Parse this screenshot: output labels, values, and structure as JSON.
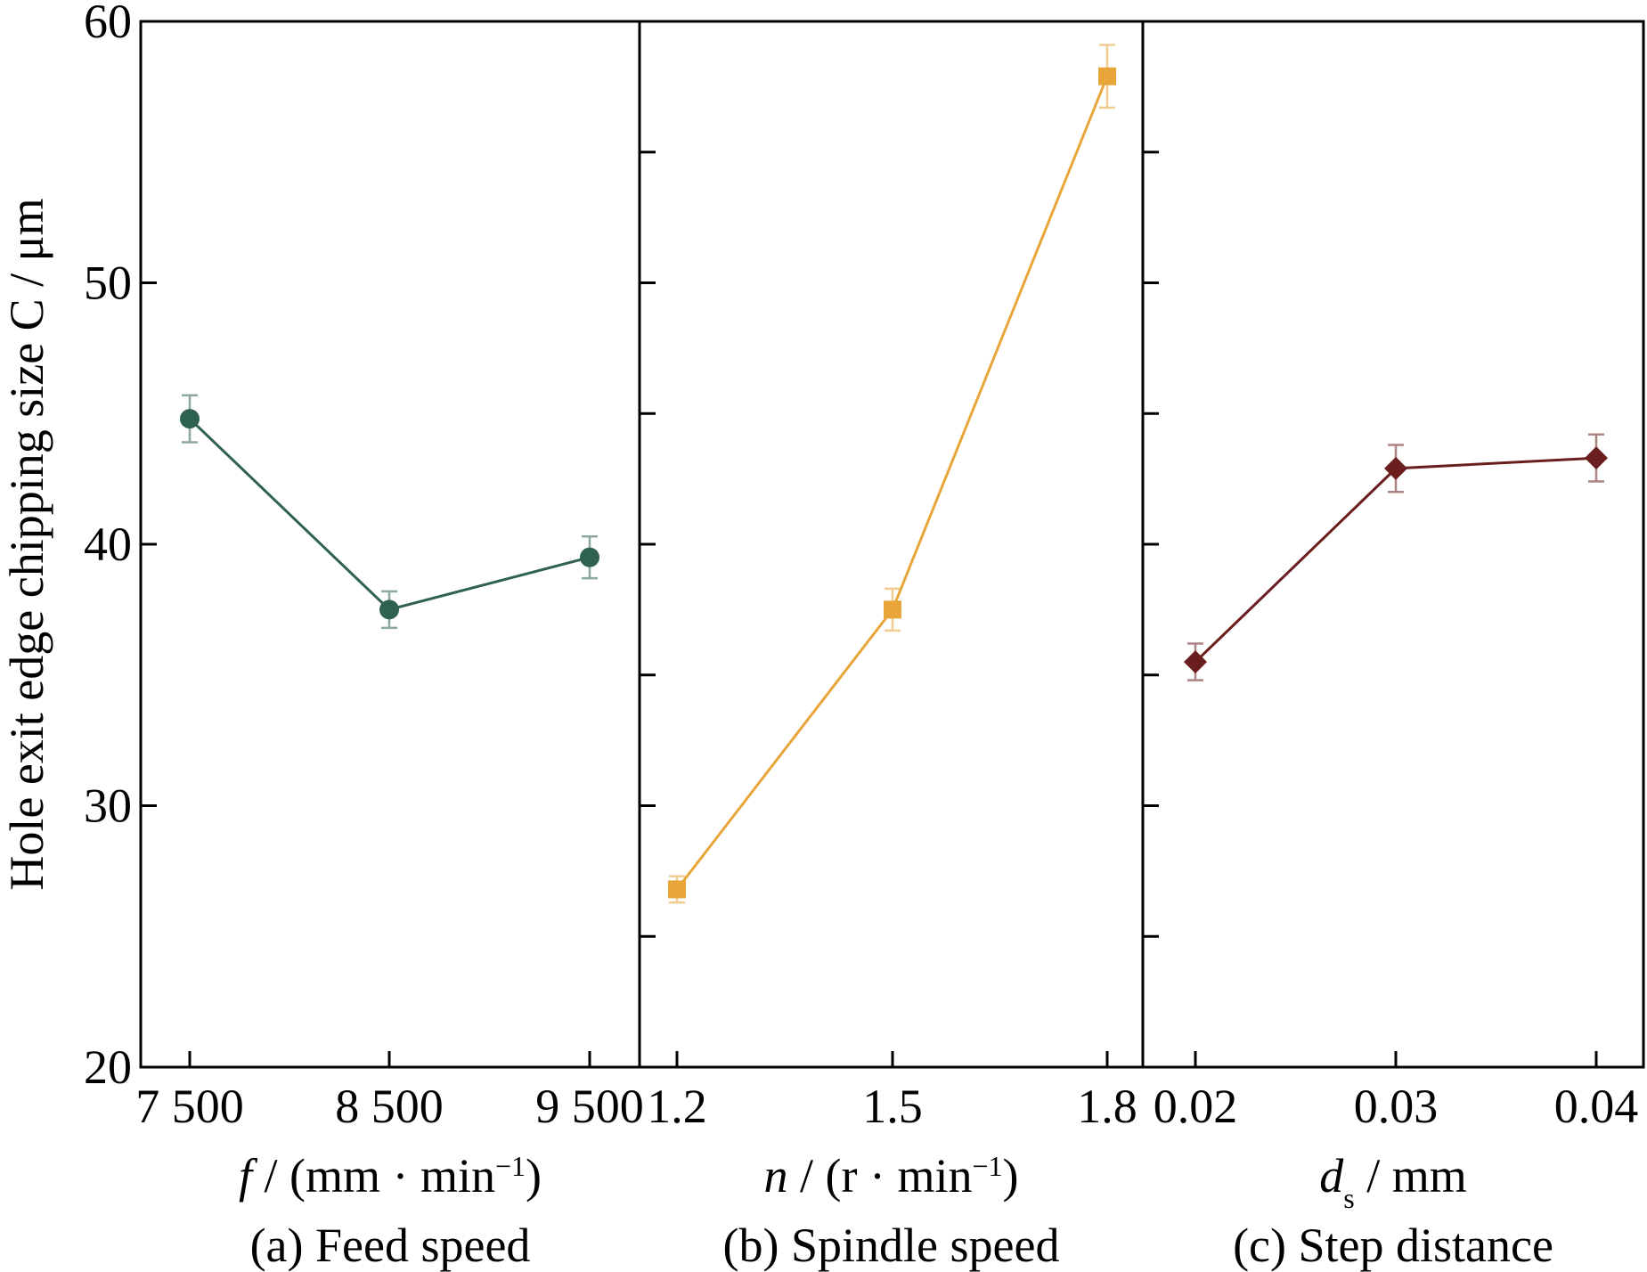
{
  "chart_data": [
    {
      "type": "line",
      "ylabel": "Hole exit edge chipping size C / μm",
      "ylim": [
        20,
        60
      ],
      "yticks": [
        "20",
        "30",
        "40",
        "50",
        "60"
      ],
      "xlabel": {
        "symbol": "f",
        "rest": " / (mm · min",
        "sup": "−1",
        "close": ")"
      },
      "caption": "(a) Feed speed",
      "categories": [
        "7 500",
        "8 500",
        "9 500"
      ],
      "x": [
        7500,
        8500,
        9500
      ],
      "values": [
        44.8,
        37.5,
        39.5
      ],
      "errors": [
        0.9,
        0.7,
        0.8
      ],
      "color": "#2f6150",
      "marker": "circle"
    },
    {
      "type": "line",
      "ylim": [
        20,
        60
      ],
      "xlabel": {
        "symbol": "n",
        "rest": " / (r · min",
        "sup": "−1",
        "close": ")"
      },
      "caption": "(b) Spindle speed",
      "categories": [
        "1.2",
        "1.5",
        "1.8"
      ],
      "x": [
        1.2,
        1.5,
        1.8
      ],
      "values": [
        26.8,
        37.5,
        57.9
      ],
      "errors": [
        0.5,
        0.8,
        1.2
      ],
      "color": "#e8a63a",
      "marker": "square"
    },
    {
      "type": "line",
      "ylim": [
        20,
        60
      ],
      "xlabel": {
        "symbol": "d",
        "sub": "s",
        "rest": " / mm"
      },
      "caption": "(c) Step distance",
      "categories": [
        "0.02",
        "0.03",
        "0.04"
      ],
      "x": [
        0.02,
        0.03,
        0.04
      ],
      "values": [
        35.5,
        42.9,
        43.3
      ],
      "errors": [
        0.7,
        0.9,
        0.9
      ],
      "color": "#6b1e1e",
      "marker": "diamond"
    }
  ]
}
